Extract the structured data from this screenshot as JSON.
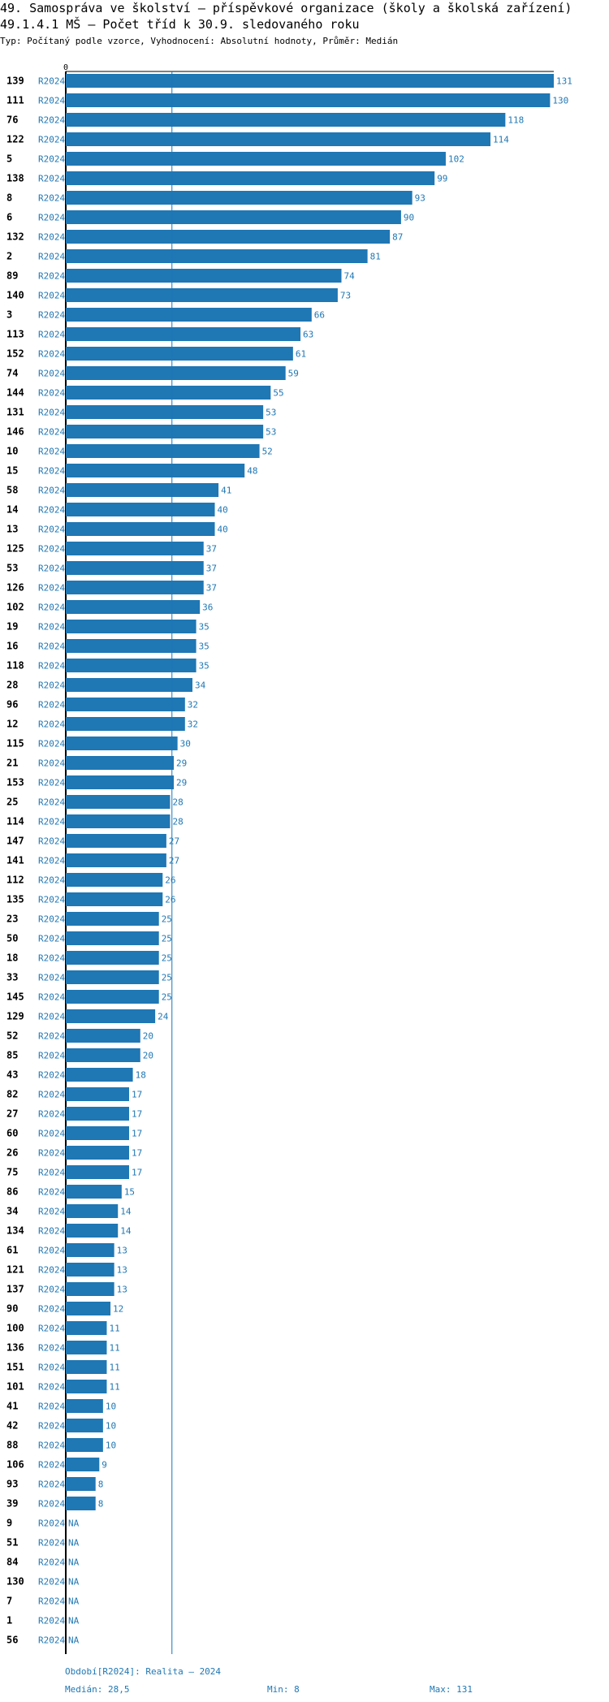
{
  "header": {
    "title": "49. Samospráva ve školství – příspěvkové organizace (školy a školská zařízení)",
    "subtitle": "49.1.4.1 MŠ – Počet tříd k 30.9. sledovaného roku",
    "meta": "Typ: Počítaný podle vzorce, Vyhodnocení: Absolutní hodnoty, Průměr: Medián"
  },
  "chart_data": {
    "type": "bar",
    "orientation": "horizontal",
    "x_tick": "0",
    "xlim": [
      0,
      131
    ],
    "series_name": "R2024",
    "na_label": "NA",
    "categories": [
      "139",
      "111",
      "76",
      "122",
      "5",
      "138",
      "8",
      "6",
      "132",
      "2",
      "89",
      "140",
      "3",
      "113",
      "152",
      "74",
      "144",
      "131",
      "146",
      "10",
      "15",
      "58",
      "14",
      "13",
      "125",
      "53",
      "126",
      "102",
      "19",
      "16",
      "118",
      "28",
      "96",
      "12",
      "115",
      "21",
      "153",
      "25",
      "114",
      "147",
      "141",
      "112",
      "135",
      "23",
      "50",
      "18",
      "33",
      "145",
      "129",
      "52",
      "85",
      "43",
      "82",
      "27",
      "60",
      "26",
      "75",
      "86",
      "34",
      "134",
      "61",
      "121",
      "137",
      "90",
      "100",
      "136",
      "151",
      "101",
      "41",
      "42",
      "88",
      "106",
      "93",
      "39",
      "9",
      "51",
      "84",
      "130",
      "7",
      "1",
      "56"
    ],
    "values": [
      131,
      130,
      118,
      114,
      102,
      99,
      93,
      90,
      87,
      81,
      74,
      73,
      66,
      63,
      61,
      59,
      55,
      53,
      53,
      52,
      48,
      41,
      40,
      40,
      37,
      37,
      37,
      36,
      35,
      35,
      35,
      34,
      32,
      32,
      30,
      29,
      29,
      28,
      28,
      27,
      27,
      26,
      26,
      25,
      25,
      25,
      25,
      25,
      24,
      20,
      20,
      18,
      17,
      17,
      17,
      17,
      17,
      15,
      14,
      14,
      13,
      13,
      13,
      12,
      11,
      11,
      11,
      11,
      10,
      10,
      10,
      9,
      8,
      8,
      null,
      null,
      null,
      null,
      null,
      null,
      null
    ],
    "median": 28.5
  },
  "footer": {
    "period": "Období[R2024]: Realita – 2024",
    "median": "Medián: 28,5",
    "min": "Min: 8",
    "max": "Max: 131"
  }
}
